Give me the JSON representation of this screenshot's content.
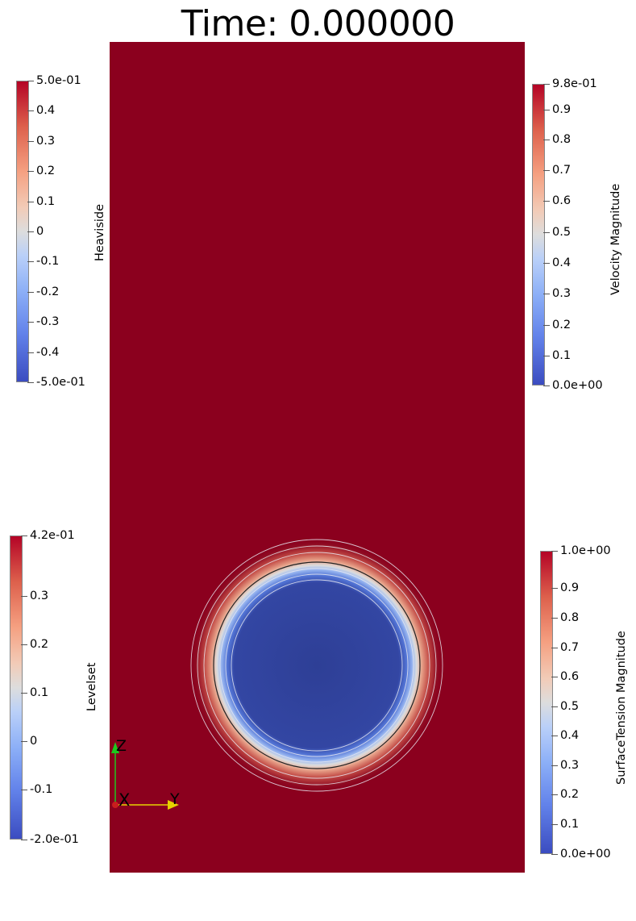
{
  "window": {
    "title": "Time: 0.000000"
  },
  "scene": {
    "domain_color": "#8b001e",
    "bubble_core_color": "#2c3e93",
    "contour_color": "#e8e8f0",
    "interface_color": "#222222"
  },
  "colorbars": {
    "heaviside": {
      "title": "Heaviside",
      "labels": [
        "5.0e-01",
        "0.4",
        "0.3",
        "0.2",
        "0.1",
        "0",
        "-0.1",
        "-0.2",
        "-0.3",
        "-0.4",
        "-5.0e-01"
      ]
    },
    "velocity": {
      "title": "Velocity Magnitude",
      "labels": [
        "9.8e-01",
        "0.9",
        "0.8",
        "0.7",
        "0.6",
        "0.5",
        "0.4",
        "0.3",
        "0.2",
        "0.1",
        "0.0e+00"
      ]
    },
    "levelset": {
      "title": "Levelset",
      "labels": [
        "4.2e-01",
        "0.3",
        "0.2",
        "0.1",
        "0",
        "-0.1",
        "-2.0e-01"
      ]
    },
    "surface_tension": {
      "title": "SurfaceTension Magnitude",
      "labels": [
        "1.0e+00",
        "0.9",
        "0.8",
        "0.7",
        "0.6",
        "0.5",
        "0.4",
        "0.3",
        "0.2",
        "0.1",
        "0.0e+00"
      ]
    }
  },
  "axes": {
    "z_label": "Z",
    "x_label": "X",
    "y_label": "Y",
    "z_color": "#1ec81e",
    "y_color": "#e6d200",
    "x_color": "#c81e1e"
  }
}
